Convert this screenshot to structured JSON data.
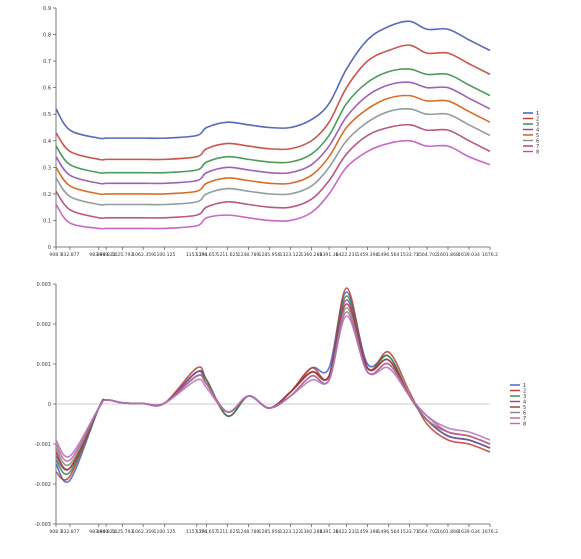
{
  "chart_data": [
    {
      "type": "line",
      "title": "",
      "xlabel": "",
      "ylabel": "",
      "ylim": [
        0,
        0.9
      ],
      "yticks": [
        "0",
        "0.1",
        "0.2",
        "0.3",
        "0.4",
        "0.5",
        "0.6",
        "0.7",
        "0.8",
        "0.9"
      ],
      "ytick_values": [
        0,
        0.1,
        0.2,
        0.3,
        0.4,
        0.5,
        0.6,
        0.7,
        0.8,
        0.9
      ],
      "xticks": [
        "908.1",
        "932.877",
        "983.849",
        "996.821",
        "1025.793",
        "1062.359",
        "1100.125",
        "1157.291",
        "1174.657",
        "1211.625",
        "1248.789",
        "1285.956",
        "1323.122",
        "1360.288",
        "1391.36",
        "1422.231",
        "1459.398",
        "1496.564",
        "1533.73",
        "1564.702",
        "1601.868",
        "1639.034",
        "1676.2"
      ],
      "x": [
        908.1,
        932.877,
        983.849,
        996.821,
        1025.793,
        1062.359,
        1100.125,
        1157.291,
        1174.657,
        1211.625,
        1248.789,
        1285.956,
        1323.122,
        1360.288,
        1391.36,
        1422.231,
        1459.398,
        1496.564,
        1533.73,
        1564.702,
        1601.868,
        1639.034,
        1676.2
      ],
      "legend": [
        "1",
        "2",
        "3",
        "4",
        "5",
        "6",
        "7",
        "8"
      ],
      "legend_position": "right",
      "grid": false,
      "series": [
        {
          "name": "1",
          "color": "#3a4fb0",
          "values": [
            0.52,
            0.44,
            0.41,
            0.41,
            0.41,
            0.41,
            0.41,
            0.42,
            0.45,
            0.47,
            0.46,
            0.45,
            0.45,
            0.48,
            0.54,
            0.67,
            0.78,
            0.83,
            0.85,
            0.82,
            0.82,
            0.78,
            0.74
          ]
        },
        {
          "name": "2",
          "color": "#c0392b",
          "values": [
            0.43,
            0.36,
            0.33,
            0.33,
            0.33,
            0.33,
            0.33,
            0.34,
            0.37,
            0.39,
            0.38,
            0.37,
            0.37,
            0.4,
            0.47,
            0.6,
            0.7,
            0.74,
            0.76,
            0.73,
            0.73,
            0.69,
            0.65
          ]
        },
        {
          "name": "3",
          "color": "#2e8b3e",
          "values": [
            0.38,
            0.31,
            0.28,
            0.28,
            0.28,
            0.28,
            0.28,
            0.29,
            0.32,
            0.34,
            0.33,
            0.32,
            0.32,
            0.35,
            0.42,
            0.54,
            0.62,
            0.66,
            0.67,
            0.65,
            0.65,
            0.61,
            0.57
          ]
        },
        {
          "name": "4",
          "color": "#8e44ad",
          "values": [
            0.34,
            0.27,
            0.24,
            0.24,
            0.24,
            0.24,
            0.24,
            0.25,
            0.28,
            0.3,
            0.29,
            0.28,
            0.28,
            0.31,
            0.38,
            0.49,
            0.57,
            0.61,
            0.62,
            0.6,
            0.6,
            0.56,
            0.52
          ]
        },
        {
          "name": "5",
          "color": "#d35400",
          "values": [
            0.3,
            0.23,
            0.2,
            0.2,
            0.2,
            0.2,
            0.2,
            0.21,
            0.24,
            0.26,
            0.25,
            0.24,
            0.24,
            0.27,
            0.34,
            0.45,
            0.52,
            0.56,
            0.57,
            0.55,
            0.55,
            0.51,
            0.47
          ]
        },
        {
          "name": "6",
          "color": "#7f8c8d",
          "values": [
            0.26,
            0.19,
            0.16,
            0.16,
            0.16,
            0.16,
            0.16,
            0.17,
            0.2,
            0.22,
            0.21,
            0.2,
            0.2,
            0.23,
            0.3,
            0.4,
            0.47,
            0.51,
            0.52,
            0.5,
            0.5,
            0.46,
            0.42
          ]
        },
        {
          "name": "7",
          "color": "#b03a6f",
          "values": [
            0.21,
            0.14,
            0.11,
            0.11,
            0.11,
            0.11,
            0.11,
            0.12,
            0.15,
            0.17,
            0.16,
            0.15,
            0.15,
            0.18,
            0.25,
            0.35,
            0.42,
            0.45,
            0.46,
            0.44,
            0.44,
            0.4,
            0.36
          ]
        },
        {
          "name": "8",
          "color": "#c04cc0",
          "values": [
            0.16,
            0.09,
            0.07,
            0.07,
            0.07,
            0.07,
            0.07,
            0.08,
            0.11,
            0.12,
            0.11,
            0.1,
            0.1,
            0.13,
            0.2,
            0.3,
            0.36,
            0.39,
            0.4,
            0.38,
            0.38,
            0.34,
            0.31
          ]
        }
      ]
    },
    {
      "type": "line",
      "title": "",
      "xlabel": "",
      "ylabel": "",
      "ylim": [
        -0.003,
        0.003
      ],
      "yticks": [
        "-0.003",
        "-0.002",
        "-0.001",
        "0",
        "0.001",
        "0.002",
        "0.003"
      ],
      "ytick_values": [
        -0.003,
        -0.002,
        -0.001,
        0,
        0.001,
        0.002,
        0.003
      ],
      "xticks": [
        "908.1",
        "932.877",
        "983.849",
        "996.821",
        "1025.793",
        "1062.359",
        "1100.125",
        "1157.291",
        "1174.657",
        "1211.625",
        "1248.789",
        "1285.956",
        "1323.122",
        "1360.288",
        "1391.36",
        "1422.231",
        "1459.398",
        "1496.564",
        "1533.73",
        "1564.702",
        "1601.868",
        "1639.034",
        "1676.2"
      ],
      "x": [
        908.1,
        932.877,
        983.849,
        996.821,
        1025.793,
        1062.359,
        1100.125,
        1157.291,
        1174.657,
        1211.625,
        1248.789,
        1285.956,
        1323.122,
        1360.288,
        1391.36,
        1422.231,
        1459.398,
        1496.564,
        1533.73,
        1564.702,
        1601.868,
        1639.034,
        1676.2
      ],
      "legend": [
        "1",
        "2",
        "3",
        "4",
        "5",
        "6",
        "7",
        "8"
      ],
      "legend_position": "right",
      "grid": false,
      "series": [
        {
          "name": "1",
          "color": "#3a5fd0",
          "values": [
            -0.0015,
            -0.0019,
            -0.0001,
            0.0001,
            3e-05,
            1e-05,
            2e-05,
            0.0008,
            0.0006,
            -0.0003,
            0.0002,
            -0.0001,
            0.0003,
            0.0009,
            0.0009,
            0.0028,
            0.001,
            0.0012,
            0.0002,
            -0.0004,
            -0.0008,
            -0.0009,
            -0.0011
          ]
        },
        {
          "name": "2",
          "color": "#c0392b",
          "values": [
            -0.0017,
            -0.0018,
            -0.0001,
            0.0001,
            3e-05,
            1e-05,
            2e-05,
            0.0009,
            0.0006,
            -0.0003,
            0.0002,
            -0.0001,
            0.0003,
            0.0009,
            0.0007,
            0.0029,
            0.0009,
            0.0013,
            0.0003,
            -0.0005,
            -0.0009,
            -0.001,
            -0.0012
          ]
        },
        {
          "name": "3",
          "color": "#2e8b3e",
          "values": [
            -0.0014,
            -0.0017,
            -0.0001,
            0.0001,
            3e-05,
            1e-05,
            2e-05,
            0.0008,
            0.0006,
            -0.0003,
            0.0002,
            -0.0001,
            0.0003,
            0.0008,
            0.0007,
            0.0027,
            0.0009,
            0.0012,
            0.0002,
            -0.0004,
            -0.0008,
            -0.0009,
            -0.0011
          ]
        },
        {
          "name": "4",
          "color": "#8e44ad",
          "values": [
            -0.0013,
            -0.0016,
            -0.0001,
            0.0001,
            3e-05,
            1e-05,
            2e-05,
            0.0008,
            0.0005,
            -0.0002,
            0.0002,
            -0.0001,
            0.0003,
            0.0008,
            0.0007,
            0.0026,
            0.0009,
            0.0011,
            0.0002,
            -0.0004,
            -0.0008,
            -0.0009,
            -0.0011
          ]
        },
        {
          "name": "5",
          "color": "#a93226",
          "values": [
            -0.0012,
            -0.0016,
            -0.0001,
            0.0001,
            3e-05,
            1e-05,
            2e-05,
            0.0007,
            0.0005,
            -0.0002,
            0.0002,
            -0.0001,
            0.0003,
            0.0008,
            0.0007,
            0.0025,
            0.0009,
            0.0011,
            0.0002,
            -0.0004,
            -0.0007,
            -0.0008,
            -0.001
          ]
        },
        {
          "name": "6",
          "color": "#7f8c8d",
          "values": [
            -0.0011,
            -0.0015,
            -0.0001,
            0.0001,
            3e-05,
            1e-05,
            2e-05,
            0.0007,
            0.0005,
            -0.0002,
            0.0002,
            -0.0001,
            0.0002,
            0.0007,
            0.0006,
            0.0024,
            0.0008,
            0.001,
            0.0002,
            -0.0004,
            -0.0007,
            -0.0008,
            -0.001
          ]
        },
        {
          "name": "7",
          "color": "#c06090",
          "values": [
            -0.001,
            -0.0014,
            -0.0001,
            0.0001,
            3e-05,
            1e-05,
            2e-05,
            0.0007,
            0.0005,
            -0.0002,
            0.0002,
            -0.0001,
            0.0002,
            0.0007,
            0.0006,
            0.0023,
            0.0008,
            0.001,
            0.0002,
            -0.0003,
            -0.0007,
            -0.0008,
            -0.001
          ]
        },
        {
          "name": "8",
          "color": "#b070c0",
          "values": [
            -0.0009,
            -0.0013,
            -0.0001,
            0.0001,
            3e-05,
            1e-05,
            2e-05,
            0.0006,
            0.0004,
            -0.0002,
            0.0002,
            -0.0001,
            0.0002,
            0.0006,
            0.0006,
            0.0022,
            0.0008,
            0.0009,
            0.0002,
            -0.0003,
            -0.0006,
            -0.0007,
            -0.0009
          ]
        }
      ]
    }
  ]
}
